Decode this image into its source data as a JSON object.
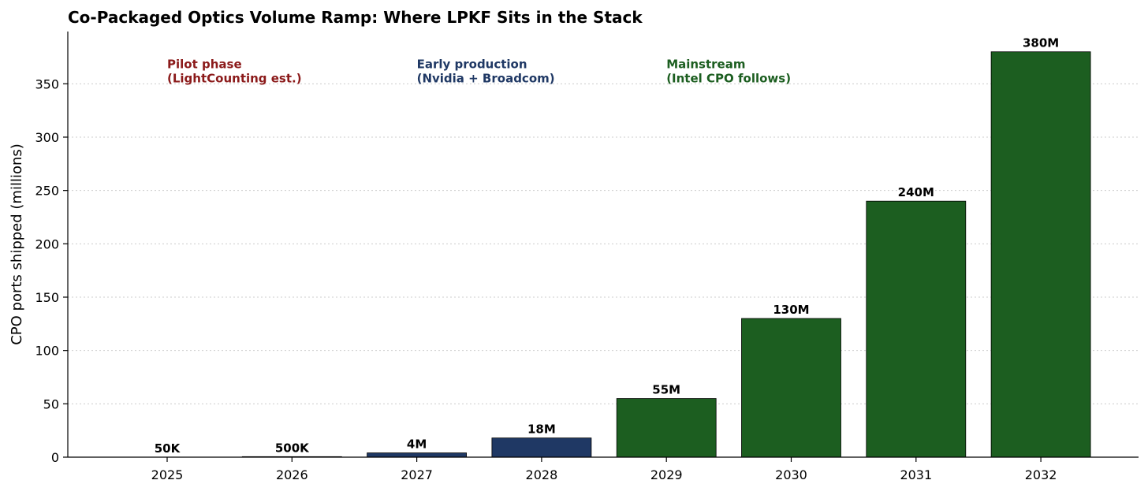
{
  "chart_data": {
    "type": "bar",
    "title": "Co-Packaged Optics Volume Ramp: Where LPKF Sits in the Stack",
    "xlabel": "",
    "ylabel": "CPO ports shipped (millions)",
    "ylim": [
      0,
      399
    ],
    "yticks": [
      0,
      50,
      100,
      150,
      200,
      250,
      300,
      350
    ],
    "grid": "horizontal dotted",
    "categories": [
      "2025",
      "2026",
      "2027",
      "2028",
      "2029",
      "2030",
      "2031",
      "2032"
    ],
    "values": [
      0.05,
      0.5,
      4,
      18,
      55,
      130,
      240,
      380
    ],
    "data_labels": [
      "50K",
      "500K",
      "4M",
      "18M",
      "55M",
      "130M",
      "240M",
      "380M"
    ],
    "phases": [
      "pilot",
      "pilot",
      "early",
      "early",
      "mainstream",
      "mainstream",
      "mainstream",
      "mainstream"
    ],
    "phase_colors": {
      "pilot": "#8b1a1a",
      "early": "#1f3864",
      "mainstream": "#1c5e20"
    },
    "annotations": [
      {
        "phase": "pilot",
        "lines": [
          "Pilot phase",
          "(LightCounting est.)"
        ],
        "color": "#8b1a1a"
      },
      {
        "phase": "early",
        "lines": [
          "Early production",
          "(Nvidia + Broadcom)"
        ],
        "color": "#1f3864"
      },
      {
        "phase": "mainstream",
        "lines": [
          "Mainstream",
          "(Intel CPO follows)"
        ],
        "color": "#1c5e20"
      }
    ]
  }
}
